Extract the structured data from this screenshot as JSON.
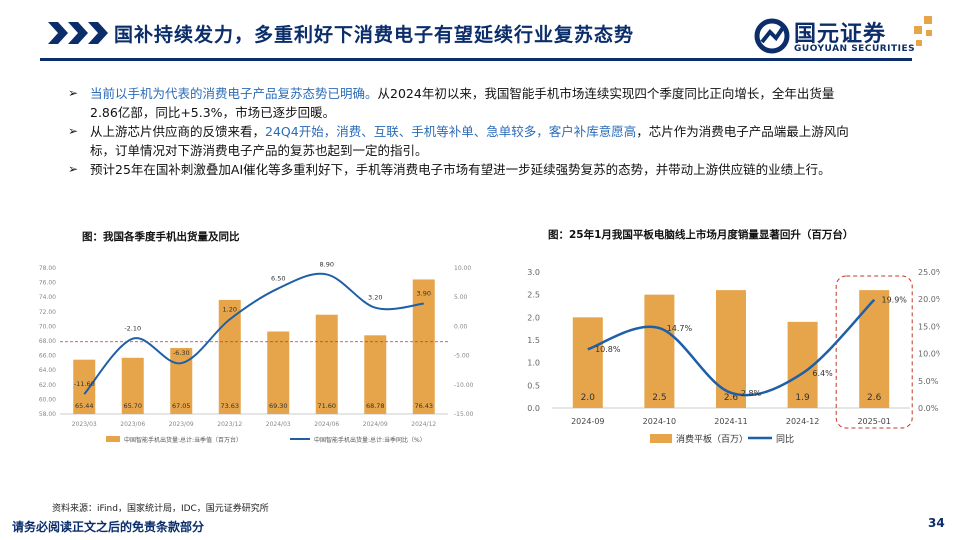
{
  "header": {
    "title": "国补持续发力，多重利好下消费电子有望延续行业复苏态势",
    "logo_cn": "国元证券",
    "logo_en": "GUOYUAN SECURITIES"
  },
  "bullets": [
    {
      "pre": "",
      "highlight": "当前以手机为代表的消费电子产品复苏态势已明确。",
      "post": "从2024年初以来，我国智能手机市场连续实现四个季度同比正向增长，全年出货量2.86亿部，同比+5.3%，市场已逐步回暖。"
    },
    {
      "pre": "从上游芯片供应商的反馈来看，",
      "highlight": "24Q4开始，消费、互联、手机等补单、急单较多，客户补库意愿高",
      "post": "，芯片作为消费电子产品端最上游风向标，订单情况对下游消费电子产品的复苏也起到一定的指引。"
    },
    {
      "pre": "预计25年在国补刺激叠加AI催化等多重利好下，手机等消费电子市场有望进一步延续强势复苏的态势，并带动上游供应链的业绩上行。",
      "highlight": "",
      "post": ""
    }
  ],
  "colors": {
    "navy": "#0b2e6b",
    "orange": "#e6a54a",
    "line_blue": "#1f5fa8",
    "highlight_blue": "#2b6cb8",
    "red_dash": "#c0392b"
  },
  "chart_left_title": "图：我国各季度手机出货量及同比",
  "chart_right_title": "图：25年1月我国平板电脑线上市场月度销量显著回升（百万台）",
  "chart_data": [
    {
      "type": "bar",
      "categories": [
        "2023/03",
        "2023/06",
        "2023/09",
        "2023/12",
        "2024/03",
        "2024/06",
        "2024/09",
        "2024/12"
      ],
      "series": [
        {
          "name": "中国智能手机出货量:总计:当季值（百万台）",
          "type": "bar",
          "axis": "left",
          "values": [
            65.44,
            65.7,
            67.05,
            73.63,
            69.3,
            71.6,
            68.78,
            76.43
          ],
          "labels": [
            "65.44",
            "65.70",
            "67.05",
            "73.63",
            "69.30",
            "71.60",
            "68.78",
            "76.43"
          ]
        },
        {
          "name": "中国智能手机出货量:总计:当季同比（%）",
          "type": "line",
          "axis": "right",
          "values": [
            -11.6,
            -2.1,
            -6.3,
            1.2,
            6.5,
            8.9,
            3.2,
            3.9
          ],
          "labels": [
            "-11.60",
            "-2.10",
            "-6.30",
            "1.20",
            "6.50",
            "8.90",
            "3.20",
            "3.90"
          ]
        }
      ],
      "left_axis": {
        "ylim": [
          58,
          78
        ],
        "ticks": [
          "58.00",
          "60.00",
          "62.00",
          "64.00",
          "66.00",
          "68.00",
          "70.00",
          "72.00",
          "74.00",
          "76.00",
          "78.00"
        ]
      },
      "right_axis": {
        "ylim": [
          -15,
          10
        ],
        "ticks": [
          "-15.00",
          "-10.00",
          "-5.00",
          "0.00",
          "5.00",
          "10.00"
        ]
      },
      "reference_line": 67.9
    },
    {
      "type": "bar",
      "categories": [
        "2024-09",
        "2024-10",
        "2024-11",
        "2024-12",
        "2025-01"
      ],
      "series": [
        {
          "name": "消费平板（百万）",
          "type": "bar",
          "axis": "left",
          "values": [
            2.0,
            2.5,
            2.6,
            1.9,
            2.6
          ],
          "labels": [
            "2.0",
            "2.5",
            "2.6",
            "1.9",
            "2.6"
          ]
        },
        {
          "name": "同比",
          "type": "line",
          "axis": "right",
          "values": [
            10.8,
            14.7,
            2.8,
            6.4,
            19.9
          ],
          "labels": [
            "10.8%",
            "14.7%",
            "2.8%",
            "6.4%",
            "19.9%"
          ]
        }
      ],
      "left_axis": {
        "ylim": [
          0,
          3
        ],
        "ticks": [
          "0.0",
          "0.5",
          "1.0",
          "1.5",
          "2.0",
          "2.5",
          "3.0"
        ]
      },
      "right_axis": {
        "ylim": [
          0,
          25
        ],
        "ticks": [
          "0.0%",
          "5.0%",
          "10.0%",
          "15.0%",
          "20.0%",
          "25.0%"
        ]
      },
      "highlight_category": "2025-01"
    }
  ],
  "footer": {
    "source": "资料来源：iFind，国家统计局，IDC，国元证券研究所",
    "disclaimer": "请务必阅读正文之后的免责条款部分",
    "page": "34"
  }
}
